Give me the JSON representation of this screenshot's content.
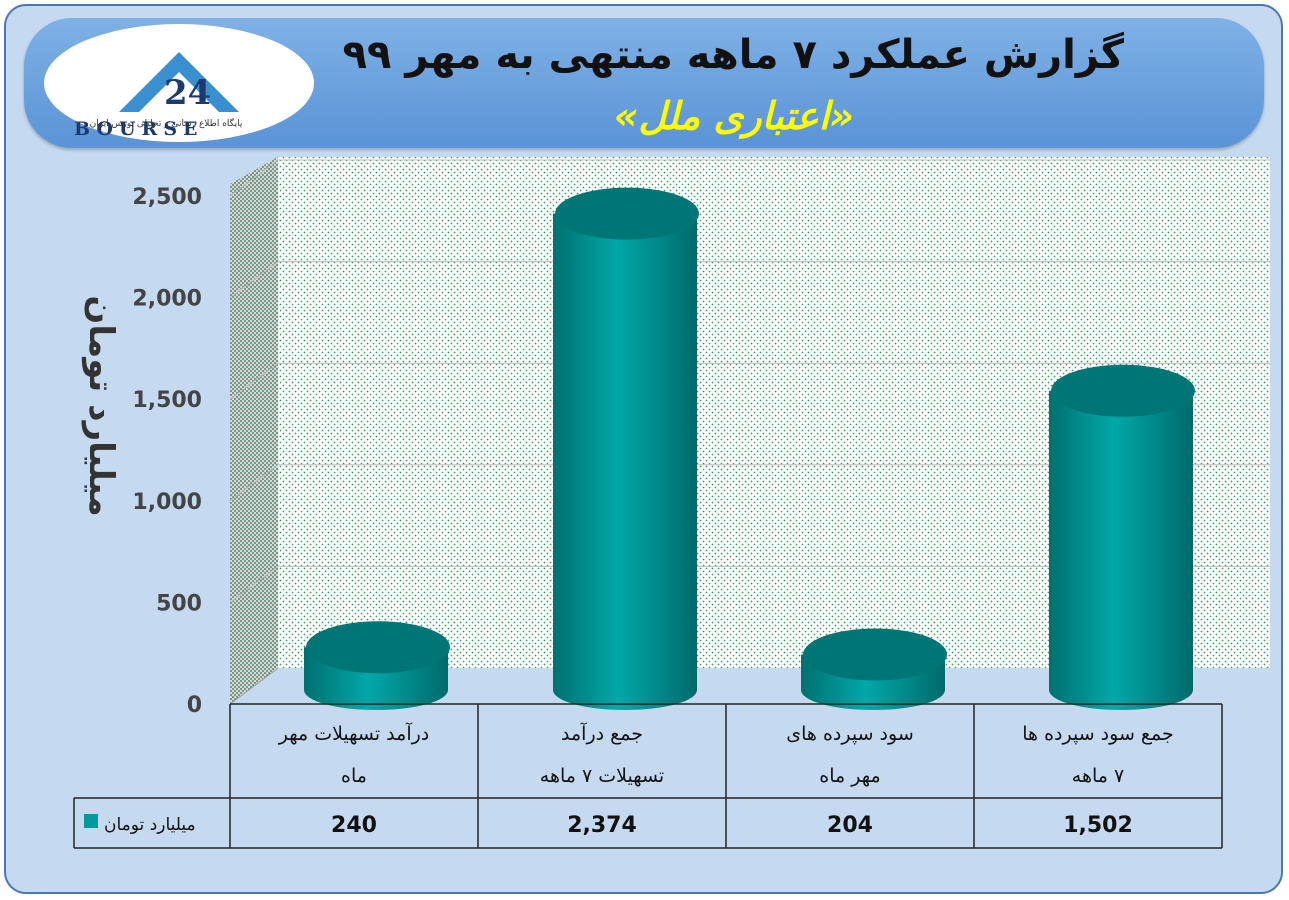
{
  "header": {
    "title": "گزارش عملکرد ۷ ماهه منتهی به مهر ۹۹",
    "subtitle": "«اعتباری ملل»",
    "logo_text": "BOURSE",
    "logo_number": "24",
    "logo_tagline": "پایگاه اطلاع رسانی و تحلیلی بورس ایران"
  },
  "colors": {
    "bar": "#009a9a",
    "bar_top": "#007a7a",
    "banner": "#6aa0de",
    "background": "#c5daf0",
    "title_accent": "#ffff00"
  },
  "chart_data": {
    "type": "bar",
    "ylabel": "میلیارد تومان",
    "ylim": [
      0,
      2500
    ],
    "yticks": [
      0,
      500,
      1000,
      1500,
      2000,
      2500
    ],
    "ytick_labels": [
      "0",
      "500",
      "1,000",
      "1,500",
      "2,000",
      "2,500"
    ],
    "categories": [
      [
        "درآمد تسهیلات مهر",
        "ماه"
      ],
      [
        "جمع درآمد",
        "تسهیلات ۷ ماهه"
      ],
      [
        "سود سپرده های",
        "مهر ماه"
      ],
      [
        "جمع سود سپرده ها",
        "۷ ماهه"
      ]
    ],
    "series": [
      {
        "name": "میلیارد تومان",
        "values": [
          240,
          2374,
          204,
          1502
        ],
        "value_labels": [
          "240",
          "2,374",
          "204",
          "1,502"
        ]
      }
    ],
    "grid": true,
    "legend": "table-left"
  }
}
